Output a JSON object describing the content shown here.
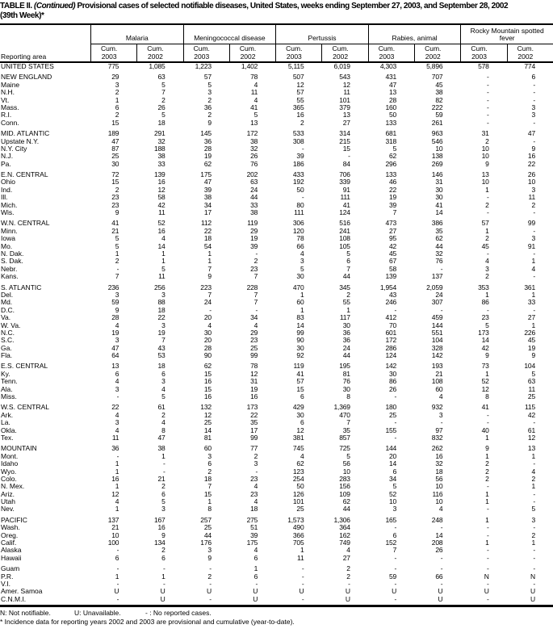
{
  "title": {
    "prefix": "TABLE II.",
    "continued": "(Continued)",
    "rest": "Provisional cases of selected notifiable diseases, United States, weeks ending September 27, 2003, and September 28, 2002",
    "week_line": "(39th Week)*"
  },
  "header": {
    "reporting_area": "Reporting area",
    "groups": [
      {
        "label": "Malaria"
      },
      {
        "label": "Meningococcal disease"
      },
      {
        "label": "Pertussis"
      },
      {
        "label": "Rabies, animal"
      },
      {
        "label": "Rocky Mountain spotted fever"
      }
    ],
    "cum": "Cum.",
    "years": [
      "2003",
      "2002"
    ]
  },
  "rows": [
    {
      "area": "UNITED STATES",
      "gap": false,
      "vals": [
        "775",
        "1,085",
        "1,223",
        "1,402",
        "5,115",
        "6,019",
        "4,303",
        "5,896",
        "578",
        "774"
      ]
    },
    {
      "area": "NEW ENGLAND",
      "gap": true,
      "vals": [
        "29",
        "63",
        "57",
        "78",
        "507",
        "543",
        "431",
        "707",
        "-",
        "6"
      ]
    },
    {
      "area": "Maine",
      "gap": false,
      "vals": [
        "3",
        "5",
        "5",
        "4",
        "12",
        "12",
        "47",
        "45",
        "-",
        "-"
      ]
    },
    {
      "area": "N.H.",
      "gap": false,
      "vals": [
        "2",
        "7",
        "3",
        "11",
        "57",
        "11",
        "13",
        "38",
        "-",
        "-"
      ]
    },
    {
      "area": "Vt.",
      "gap": false,
      "vals": [
        "1",
        "2",
        "2",
        "4",
        "55",
        "101",
        "28",
        "82",
        "-",
        "-"
      ]
    },
    {
      "area": "Mass.",
      "gap": false,
      "vals": [
        "6",
        "26",
        "36",
        "41",
        "365",
        "379",
        "160",
        "222",
        "-",
        "3"
      ]
    },
    {
      "area": "R.I.",
      "gap": false,
      "vals": [
        "2",
        "5",
        "2",
        "5",
        "16",
        "13",
        "50",
        "59",
        "-",
        "3"
      ]
    },
    {
      "area": "Conn.",
      "gap": false,
      "vals": [
        "15",
        "18",
        "9",
        "13",
        "2",
        "27",
        "133",
        "261",
        "-",
        "-"
      ]
    },
    {
      "area": "MID. ATLANTIC",
      "gap": true,
      "vals": [
        "189",
        "291",
        "145",
        "172",
        "533",
        "314",
        "681",
        "963",
        "31",
        "47"
      ]
    },
    {
      "area": "Upstate N.Y.",
      "gap": false,
      "vals": [
        "47",
        "32",
        "36",
        "38",
        "308",
        "215",
        "318",
        "546",
        "2",
        "-"
      ]
    },
    {
      "area": "N.Y. City",
      "gap": false,
      "vals": [
        "87",
        "188",
        "28",
        "32",
        "-",
        "15",
        "5",
        "10",
        "10",
        "9"
      ]
    },
    {
      "area": "N.J.",
      "gap": false,
      "vals": [
        "25",
        "38",
        "19",
        "26",
        "39",
        "-",
        "62",
        "138",
        "10",
        "16"
      ]
    },
    {
      "area": "Pa.",
      "gap": false,
      "vals": [
        "30",
        "33",
        "62",
        "76",
        "186",
        "84",
        "296",
        "269",
        "9",
        "22"
      ]
    },
    {
      "area": "E.N. CENTRAL",
      "gap": true,
      "vals": [
        "72",
        "139",
        "175",
        "202",
        "433",
        "706",
        "133",
        "146",
        "13",
        "26"
      ]
    },
    {
      "area": "Ohio",
      "gap": false,
      "vals": [
        "15",
        "16",
        "47",
        "63",
        "192",
        "339",
        "46",
        "31",
        "10",
        "10"
      ]
    },
    {
      "area": "Ind.",
      "gap": false,
      "vals": [
        "2",
        "12",
        "39",
        "24",
        "50",
        "91",
        "22",
        "30",
        "1",
        "3"
      ]
    },
    {
      "area": "Ill.",
      "gap": false,
      "vals": [
        "23",
        "58",
        "38",
        "44",
        "-",
        "111",
        "19",
        "30",
        "-",
        "11"
      ]
    },
    {
      "area": "Mich.",
      "gap": false,
      "vals": [
        "23",
        "42",
        "34",
        "33",
        "80",
        "41",
        "39",
        "41",
        "2",
        "2"
      ]
    },
    {
      "area": "Wis.",
      "gap": false,
      "vals": [
        "9",
        "11",
        "17",
        "38",
        "111",
        "124",
        "7",
        "14",
        "-",
        "-"
      ]
    },
    {
      "area": "W.N. CENTRAL",
      "gap": true,
      "vals": [
        "41",
        "52",
        "112",
        "119",
        "306",
        "516",
        "473",
        "386",
        "57",
        "99"
      ]
    },
    {
      "area": "Minn.",
      "gap": false,
      "vals": [
        "21",
        "16",
        "22",
        "29",
        "120",
        "241",
        "27",
        "35",
        "1",
        "-"
      ]
    },
    {
      "area": "Iowa",
      "gap": false,
      "vals": [
        "5",
        "4",
        "18",
        "19",
        "78",
        "108",
        "95",
        "62",
        "2",
        "3"
      ]
    },
    {
      "area": "Mo.",
      "gap": false,
      "vals": [
        "5",
        "14",
        "54",
        "39",
        "66",
        "105",
        "42",
        "44",
        "45",
        "91"
      ]
    },
    {
      "area": "N. Dak.",
      "gap": false,
      "vals": [
        "1",
        "1",
        "1",
        "-",
        "4",
        "5",
        "45",
        "32",
        "-",
        "-"
      ]
    },
    {
      "area": "S. Dak.",
      "gap": false,
      "vals": [
        "2",
        "1",
        "1",
        "2",
        "3",
        "6",
        "67",
        "76",
        "4",
        "1"
      ]
    },
    {
      "area": "Nebr.",
      "gap": false,
      "vals": [
        "-",
        "5",
        "7",
        "23",
        "5",
        "7",
        "58",
        "-",
        "3",
        "4"
      ]
    },
    {
      "area": "Kans.",
      "gap": false,
      "vals": [
        "7",
        "11",
        "9",
        "7",
        "30",
        "44",
        "139",
        "137",
        "2",
        "-"
      ]
    },
    {
      "area": "S. ATLANTIC",
      "gap": true,
      "vals": [
        "236",
        "256",
        "223",
        "228",
        "470",
        "345",
        "1,954",
        "2,059",
        "353",
        "361"
      ]
    },
    {
      "area": "Del.",
      "gap": false,
      "vals": [
        "3",
        "3",
        "7",
        "7",
        "1",
        "2",
        "43",
        "24",
        "1",
        "1"
      ]
    },
    {
      "area": "Md.",
      "gap": false,
      "vals": [
        "59",
        "88",
        "24",
        "7",
        "60",
        "55",
        "246",
        "307",
        "86",
        "33"
      ]
    },
    {
      "area": "D.C.",
      "gap": false,
      "vals": [
        "9",
        "18",
        "-",
        "-",
        "1",
        "1",
        "-",
        "-",
        "-",
        "-"
      ]
    },
    {
      "area": "Va.",
      "gap": false,
      "vals": [
        "28",
        "22",
        "20",
        "34",
        "83",
        "117",
        "412",
        "459",
        "23",
        "27"
      ]
    },
    {
      "area": "W. Va.",
      "gap": false,
      "vals": [
        "4",
        "3",
        "4",
        "4",
        "14",
        "30",
        "70",
        "144",
        "5",
        "1"
      ]
    },
    {
      "area": "N.C.",
      "gap": false,
      "vals": [
        "19",
        "19",
        "30",
        "29",
        "99",
        "36",
        "601",
        "551",
        "173",
        "226"
      ]
    },
    {
      "area": "S.C.",
      "gap": false,
      "vals": [
        "3",
        "7",
        "20",
        "23",
        "90",
        "36",
        "172",
        "104",
        "14",
        "45"
      ]
    },
    {
      "area": "Ga.",
      "gap": false,
      "vals": [
        "47",
        "43",
        "28",
        "25",
        "30",
        "24",
        "286",
        "328",
        "42",
        "19"
      ]
    },
    {
      "area": "Fla.",
      "gap": false,
      "vals": [
        "64",
        "53",
        "90",
        "99",
        "92",
        "44",
        "124",
        "142",
        "9",
        "9"
      ]
    },
    {
      "area": "E.S. CENTRAL",
      "gap": true,
      "vals": [
        "13",
        "18",
        "62",
        "78",
        "119",
        "195",
        "142",
        "193",
        "73",
        "104"
      ]
    },
    {
      "area": "Ky.",
      "gap": false,
      "vals": [
        "6",
        "6",
        "15",
        "12",
        "41",
        "81",
        "30",
        "21",
        "1",
        "5"
      ]
    },
    {
      "area": "Tenn.",
      "gap": false,
      "vals": [
        "4",
        "3",
        "16",
        "31",
        "57",
        "76",
        "86",
        "108",
        "52",
        "63"
      ]
    },
    {
      "area": "Ala.",
      "gap": false,
      "vals": [
        "3",
        "4",
        "15",
        "19",
        "15",
        "30",
        "26",
        "60",
        "12",
        "11"
      ]
    },
    {
      "area": "Miss.",
      "gap": false,
      "vals": [
        "-",
        "5",
        "16",
        "16",
        "6",
        "8",
        "-",
        "4",
        "8",
        "25"
      ]
    },
    {
      "area": "W.S. CENTRAL",
      "gap": true,
      "vals": [
        "22",
        "61",
        "132",
        "173",
        "429",
        "1,369",
        "180",
        "932",
        "41",
        "115"
      ]
    },
    {
      "area": "Ark.",
      "gap": false,
      "vals": [
        "4",
        "2",
        "12",
        "22",
        "30",
        "470",
        "25",
        "3",
        "-",
        "42"
      ]
    },
    {
      "area": "La.",
      "gap": false,
      "vals": [
        "3",
        "4",
        "25",
        "35",
        "6",
        "7",
        "-",
        "-",
        "-",
        "-"
      ]
    },
    {
      "area": "Okla.",
      "gap": false,
      "vals": [
        "4",
        "8",
        "14",
        "17",
        "12",
        "35",
        "155",
        "97",
        "40",
        "61"
      ]
    },
    {
      "area": "Tex.",
      "gap": false,
      "vals": [
        "11",
        "47",
        "81",
        "99",
        "381",
        "857",
        "-",
        "832",
        "1",
        "12"
      ]
    },
    {
      "area": "MOUNTAIN",
      "gap": true,
      "vals": [
        "36",
        "38",
        "60",
        "77",
        "745",
        "725",
        "144",
        "262",
        "9",
        "13"
      ]
    },
    {
      "area": "Mont.",
      "gap": false,
      "vals": [
        "-",
        "1",
        "3",
        "2",
        "4",
        "5",
        "20",
        "16",
        "1",
        "1"
      ]
    },
    {
      "area": "Idaho",
      "gap": false,
      "vals": [
        "1",
        "-",
        "6",
        "3",
        "62",
        "56",
        "14",
        "32",
        "2",
        "-"
      ]
    },
    {
      "area": "Wyo.",
      "gap": false,
      "vals": [
        "1",
        "-",
        "2",
        "-",
        "123",
        "10",
        "6",
        "18",
        "2",
        "4"
      ]
    },
    {
      "area": "Colo.",
      "gap": false,
      "vals": [
        "16",
        "21",
        "18",
        "23",
        "254",
        "283",
        "34",
        "56",
        "2",
        "2"
      ]
    },
    {
      "area": "N. Mex.",
      "gap": false,
      "vals": [
        "1",
        "2",
        "7",
        "4",
        "50",
        "156",
        "5",
        "10",
        "-",
        "1"
      ]
    },
    {
      "area": "Ariz.",
      "gap": false,
      "vals": [
        "12",
        "6",
        "15",
        "23",
        "126",
        "109",
        "52",
        "116",
        "1",
        "-"
      ]
    },
    {
      "area": "Utah",
      "gap": false,
      "vals": [
        "4",
        "5",
        "1",
        "4",
        "101",
        "62",
        "10",
        "10",
        "1",
        "-"
      ]
    },
    {
      "area": "Nev.",
      "gap": false,
      "vals": [
        "1",
        "3",
        "8",
        "18",
        "25",
        "44",
        "3",
        "4",
        "-",
        "5"
      ]
    },
    {
      "area": "PACIFIC",
      "gap": true,
      "vals": [
        "137",
        "167",
        "257",
        "275",
        "1,573",
        "1,306",
        "165",
        "248",
        "1",
        "3"
      ]
    },
    {
      "area": "Wash.",
      "gap": false,
      "vals": [
        "21",
        "16",
        "25",
        "51",
        "490",
        "364",
        "-",
        "-",
        "-",
        "-"
      ]
    },
    {
      "area": "Oreg.",
      "gap": false,
      "vals": [
        "10",
        "9",
        "44",
        "39",
        "366",
        "162",
        "6",
        "14",
        "-",
        "2"
      ]
    },
    {
      "area": "Calif.",
      "gap": false,
      "vals": [
        "100",
        "134",
        "176",
        "175",
        "705",
        "749",
        "152",
        "208",
        "1",
        "1"
      ]
    },
    {
      "area": "Alaska",
      "gap": false,
      "vals": [
        "-",
        "2",
        "3",
        "4",
        "1",
        "4",
        "7",
        "26",
        "-",
        "-"
      ]
    },
    {
      "area": "Hawaii",
      "gap": false,
      "vals": [
        "6",
        "6",
        "9",
        "6",
        "11",
        "27",
        "-",
        "-",
        "-",
        "-"
      ]
    },
    {
      "area": "Guam",
      "gap": true,
      "vals": [
        "-",
        "-",
        "-",
        "1",
        "-",
        "2",
        "-",
        "-",
        "-",
        "-"
      ]
    },
    {
      "area": "P.R.",
      "gap": false,
      "vals": [
        "1",
        "1",
        "2",
        "6",
        "-",
        "2",
        "59",
        "66",
        "N",
        "N"
      ]
    },
    {
      "area": "V.I.",
      "gap": false,
      "vals": [
        "-",
        "-",
        "-",
        "-",
        "-",
        "-",
        "-",
        "-",
        "-",
        "-"
      ]
    },
    {
      "area": "Amer. Samoa",
      "gap": false,
      "vals": [
        "U",
        "U",
        "U",
        "U",
        "U",
        "U",
        "U",
        "U",
        "U",
        "U"
      ]
    },
    {
      "area": "C.N.M.I.",
      "gap": false,
      "vals": [
        "-",
        "U",
        "-",
        "U",
        "-",
        "U",
        "-",
        "U",
        "-",
        "U"
      ]
    }
  ],
  "footnotes": {
    "legend": [
      "N: Not notifiable.",
      "U: Unavailable.",
      "- : No reported cases."
    ],
    "note": "* Incidence data for reporting years 2002 and 2003 are provisional and cumulative (year-to-date)."
  }
}
